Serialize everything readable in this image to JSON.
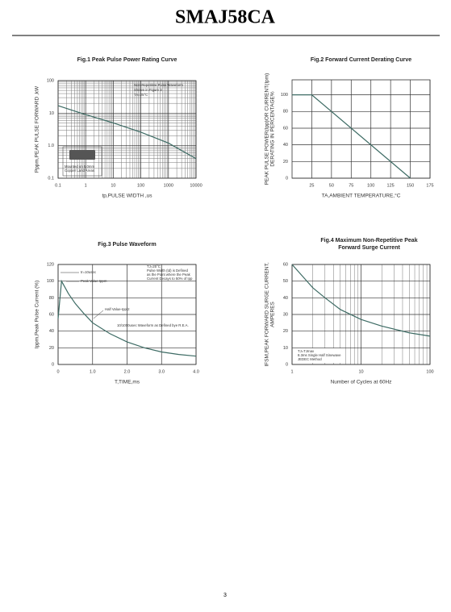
{
  "header": {
    "title": "SMAJ58CA"
  },
  "page_number": "3",
  "chart_data": [
    {
      "type": "line",
      "title": [
        "Fig.1  Peak Pulse Power Rating Curve"
      ],
      "xlabel": "tp,PULSE WIDTH ,us",
      "ylabel": [
        "Pppm,PEAK PULSE FORWARD ,kW"
      ],
      "xlog": true,
      "ylog": true,
      "grid": true,
      "color": "#3d6b64",
      "x": [
        0.1,
        1,
        10,
        100,
        1000,
        10000
      ],
      "values": [
        17,
        9,
        5,
        2.6,
        1.2,
        0.4
      ],
      "xlim": [
        0.1,
        10000
      ],
      "ylim": [
        0.1,
        100
      ],
      "xticks": [
        0.1,
        1,
        10,
        100,
        1000,
        10000
      ],
      "yticks": [
        0.1,
        {
          "value": 1,
          "label": "1.0"
        },
        10,
        100
      ],
      "annotations": [
        "Non-Repetitive  Pulse  Waveform",
        "Shown in Figure 3",
        "TA=25°C",
        "Mounted on 5.0mm",
        "Copper Land Areas"
      ]
    },
    {
      "type": "line",
      "title": [
        "Fig.2  Forward Current Derating Curve"
      ],
      "xlabel": "TA,AMBIENT TEMPERATURE,°C",
      "ylabel": [
        "PEAK  PULSE POWER(Ipp)OR CURRENT(Ipm)",
        "DERATING IN PERCENTAGE%"
      ],
      "xlog": false,
      "ylog": false,
      "grid": true,
      "color": "#3d6b64",
      "x": [
        0,
        25,
        150
      ],
      "values": [
        100,
        100,
        0
      ],
      "xlim": [
        0,
        175
      ],
      "ylim": [
        0,
        118
      ],
      "xticks": [
        25,
        50,
        75,
        100,
        125,
        150,
        175
      ],
      "yticks": [
        0,
        20,
        40,
        60,
        80,
        100
      ],
      "annotations": []
    },
    {
      "type": "line",
      "title": [
        "Fig.3  Pulse Waveform"
      ],
      "xlabel": "T,TIME,ms",
      "ylabel": [
        "Ippm,Peak Pulse Current (%)"
      ],
      "xlog": false,
      "ylog": false,
      "grid": true,
      "color": "#3d6b64",
      "x": [
        0,
        0.1,
        0.3,
        0.5,
        0.75,
        1.0,
        1.5,
        2.0,
        2.5,
        3.0,
        3.5,
        4.0
      ],
      "values": [
        55,
        100,
        85,
        73,
        61,
        50,
        37,
        27,
        20,
        15,
        12,
        10
      ],
      "xlim": [
        0,
        4
      ],
      "ylim": [
        0,
        120
      ],
      "xticks": [
        0,
        {
          "value": 1,
          "label": "1.0"
        },
        {
          "value": 2,
          "label": "2.0"
        },
        {
          "value": 3,
          "label": "3.0"
        },
        {
          "value": 4,
          "label": "4.0"
        }
      ],
      "yticks": [
        0,
        20,
        40,
        60,
        80,
        100,
        120
      ],
      "annotations": [
        "tr=10usec",
        "Peak  Value  Ippm",
        "Half  Value-Ipp/2",
        "10/1000usec  Waveform as Defined bye R.E.A.",
        "TJ=25°C",
        "Pulse  Width (td) is  Defined",
        "as the Point  where the Peak",
        "Current  Decays to 50% of Ipp"
      ]
    },
    {
      "type": "line",
      "title": [
        "Fig.4  Maximum Non-Repetitive Peak",
        "Forward Surge Current"
      ],
      "xlabel": "Number of Cycles at 60Hz",
      "ylabel": [
        "IFSM,PEAK FORWARD SURGE CURRENT,",
        "AMPERES"
      ],
      "xlog": true,
      "ylog": false,
      "grid": true,
      "color": "#3d6b64",
      "x": [
        1,
        2,
        3,
        5,
        10,
        20,
        50,
        100
      ],
      "values": [
        60,
        46,
        40,
        33,
        27,
        23,
        19,
        17
      ],
      "xlim": [
        1,
        100
      ],
      "ylim": [
        0,
        60
      ],
      "xticks": [
        1,
        10,
        100
      ],
      "yticks": [
        0,
        10,
        20,
        30,
        40,
        50,
        60
      ],
      "annotations": [
        "TJ=TJmax",
        "8.3ms Single Half  Sinewave",
        "JEDEC Method"
      ]
    }
  ]
}
